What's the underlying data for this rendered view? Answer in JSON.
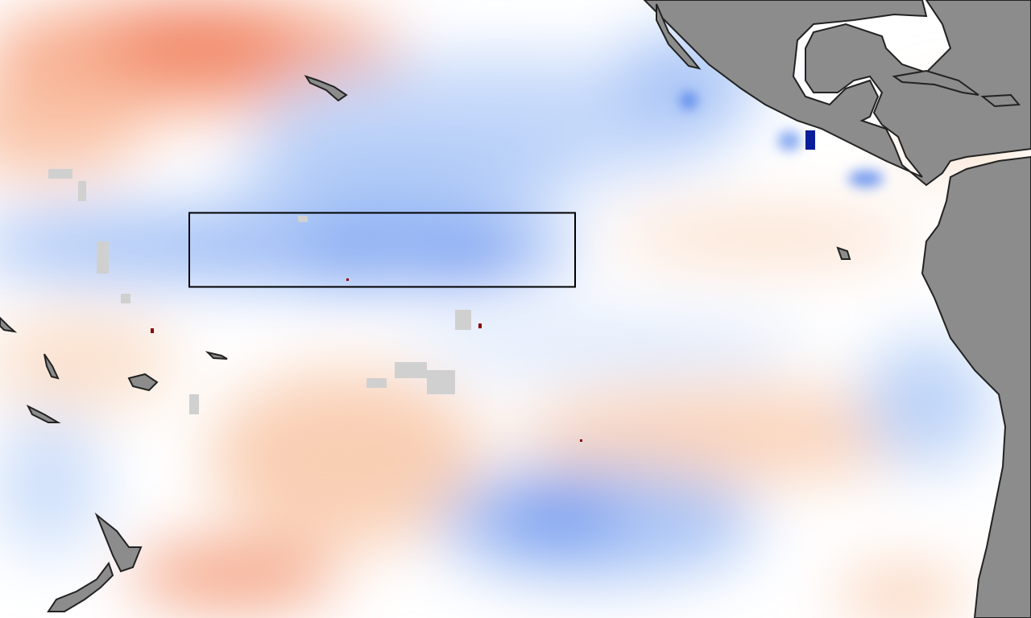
{
  "map": {
    "colors": {
      "ocean_neutral": "#ffffff",
      "warm_anomaly": "#f07050",
      "warm_light": "#f8c8a8",
      "cool_anomaly": "#5a8ef0",
      "cool_light": "#c8dcfa",
      "cool_extreme": "#0a1e9a",
      "warm_extreme": "#8a0000",
      "land": "#8c8c8c",
      "coast_mask": "#d2d2d2",
      "coastline": "#222222",
      "highlight_box": "#000000"
    },
    "layers": [
      "anomaly-field",
      "land",
      "highlight-box"
    ]
  }
}
